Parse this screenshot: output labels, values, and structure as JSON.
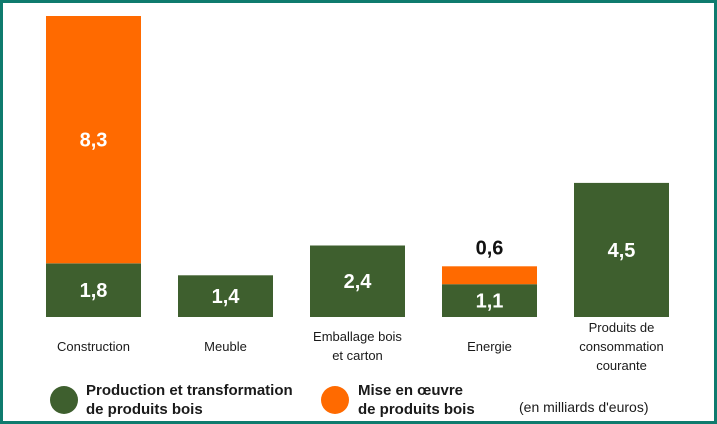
{
  "chart_data": {
    "type": "bar",
    "stacked": true,
    "categories": [
      [
        "Construction"
      ],
      [
        "Meuble"
      ],
      [
        "Emballage bois",
        "et carton"
      ],
      [
        "Energie"
      ],
      [
        "Produits de",
        "consommation",
        "courante"
      ]
    ],
    "series": [
      {
        "name": "Production et transformation de produits bois",
        "legend_lines": [
          "Production et transformation",
          "de produits bois"
        ],
        "color": "#3e5f2e",
        "values": [
          1.8,
          1.4,
          2.4,
          1.1,
          4.5
        ],
        "labels": [
          "1,8",
          "1,4",
          "2,4",
          "1,1",
          "4,5"
        ]
      },
      {
        "name": "Mise en œuvre de produits bois",
        "legend_lines": [
          "Mise en œuvre",
          "de produits bois"
        ],
        "color": "#ff6a00",
        "values": [
          8.3,
          0,
          0,
          0.6,
          0
        ],
        "labels": [
          "8,3",
          "",
          "",
          "0,6",
          ""
        ]
      }
    ],
    "unit_note": "(en milliards d'euros)",
    "legend_position": "bottom",
    "grid": false
  }
}
